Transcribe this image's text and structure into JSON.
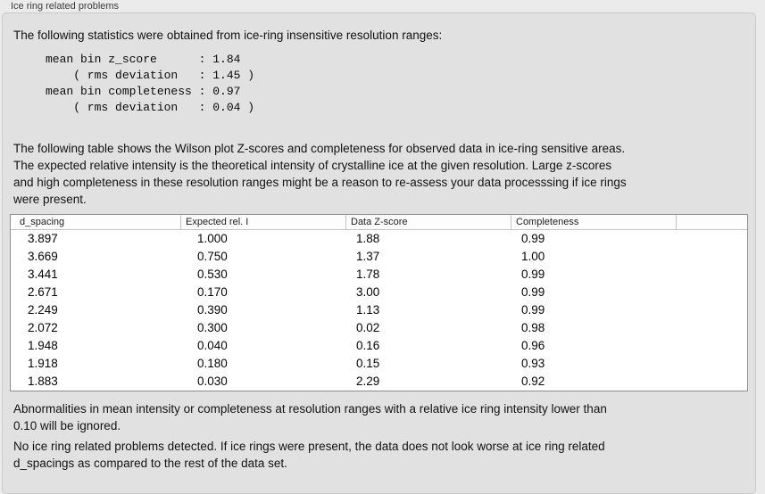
{
  "panel": {
    "title": "Ice ring related problems"
  },
  "colors": {
    "page_background": "#ebebeb",
    "box_background": "#e1e1e1",
    "box_border": "#c9c9c9",
    "table_border": "#8f8f8f",
    "text": "#111111"
  },
  "stats_section": {
    "intro": "The following statistics were obtained from ice-ring insensitive resolution ranges:",
    "block": "mean bin z_score      : 1.84\n    ( rms deviation   : 1.45 )\nmean bin completeness : 0.97\n    ( rms deviation   : 0.04 )"
  },
  "table_section": {
    "description": "The following table shows the Wilson plot Z-scores and completeness for observed data in ice-ring sensitive areas.\nThe expected relative intensity is the theoretical intensity of crystalline ice at the given resolution. Large z-scores\nand high completeness in these resolution ranges might be a reason to re-assess your data processsing if ice rings\nwere present.",
    "table": {
      "columns": [
        "d_spacing",
        "Expected rel. I",
        "Data Z-score",
        "Completeness",
        ""
      ],
      "rows": [
        [
          "3.897",
          "1.000",
          "1.88",
          "0.99"
        ],
        [
          "3.669",
          "0.750",
          "1.37",
          "1.00"
        ],
        [
          "3.441",
          "0.530",
          "1.78",
          "0.99"
        ],
        [
          "2.671",
          "0.170",
          "3.00",
          "0.99"
        ],
        [
          "2.249",
          "0.390",
          "1.13",
          "0.99"
        ],
        [
          "2.072",
          "0.300",
          "0.02",
          "0.98"
        ],
        [
          "1.948",
          "0.040",
          "0.16",
          "0.96"
        ],
        [
          "1.918",
          "0.180",
          "0.15",
          "0.93"
        ],
        [
          "1.883",
          "0.030",
          "2.29",
          "0.92"
        ]
      ]
    }
  },
  "notes": {
    "ignore_note": "Abnormalities in mean intensity or completeness at resolution ranges with a relative ice ring intensity lower than\n0.10 will be ignored.",
    "result_note": "No ice ring related problems detected. If ice rings were present, the data does not look worse at ice ring related\nd_spacings as compared to the rest of the data set."
  }
}
